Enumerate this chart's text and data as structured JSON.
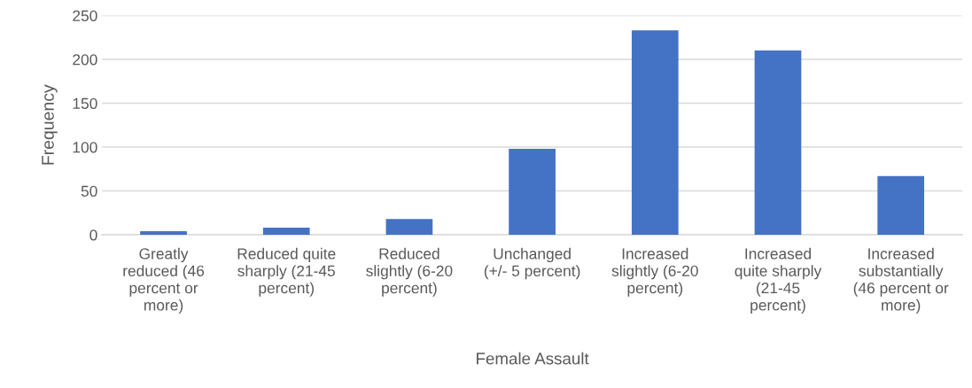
{
  "chart_data": {
    "type": "bar",
    "xlabel": "Female Assault",
    "ylabel": "Frequency",
    "categories": [
      "Greatly reduced (46 percent or more)",
      "Reduced quite sharply (21-45 percent)",
      "Reduced slightly (6-20 percent)",
      "Unchanged (+/- 5 percent)",
      "Increased slightly (6-20 percent)",
      "Increased quite sharply (21-45 percent)",
      "Increased substantially (46 percent or more)"
    ],
    "values": [
      4,
      8,
      18,
      98,
      233,
      210,
      67
    ],
    "color": "#4472c4",
    "ylim": [
      0,
      250
    ],
    "yticks": [
      0,
      50,
      100,
      150,
      200,
      250
    ],
    "grid": "y"
  }
}
